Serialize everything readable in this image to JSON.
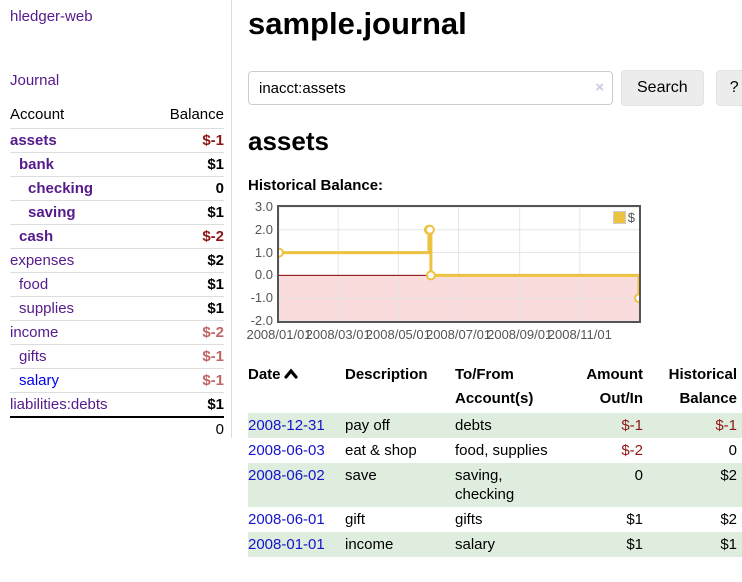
{
  "app": {
    "brand": "hledger-web",
    "nav_journal": "Journal"
  },
  "sidebar": {
    "header": {
      "account": "Account",
      "balance": "Balance"
    },
    "accounts": [
      {
        "name": "assets",
        "balance": "$-1"
      },
      {
        "name": "bank",
        "balance": "$1"
      },
      {
        "name": "checking",
        "balance": "0"
      },
      {
        "name": "saving",
        "balance": "$1"
      },
      {
        "name": "cash",
        "balance": "$-2"
      },
      {
        "name": "expenses",
        "balance": "$2"
      },
      {
        "name": "food",
        "balance": "$1"
      },
      {
        "name": "supplies",
        "balance": "$1"
      },
      {
        "name": "income",
        "balance": "$-2"
      },
      {
        "name": "gifts",
        "balance": "$-1"
      },
      {
        "name": "salary",
        "balance": "$-1"
      },
      {
        "name": "liabilities:debts",
        "balance": "$1"
      }
    ],
    "total": "0"
  },
  "main": {
    "title": "sample.journal",
    "search": {
      "value": "inacct:assets",
      "clear_icon": "×",
      "button": "Search",
      "help": "?"
    },
    "account_heading": "assets",
    "chart_label": "Historical Balance:"
  },
  "chart_data": {
    "type": "line",
    "step": true,
    "title": "Historical Balance of assets",
    "x_start": "2008/01/01",
    "x_end": "2008/12/31",
    "xticks": [
      "2008/01/01",
      "2008/03/01",
      "2008/05/01",
      "2008/07/01",
      "2008/09/01",
      "2008/11/01"
    ],
    "yticks": [
      3.0,
      2.0,
      1.0,
      0.0,
      -1.0,
      -2.0
    ],
    "ylim": [
      -2,
      3
    ],
    "series": [
      {
        "name": "$",
        "color": "#edc240",
        "points": [
          [
            "2008-01-01",
            1
          ],
          [
            "2008-06-01",
            2
          ],
          [
            "2008-06-02",
            2
          ],
          [
            "2008-06-03",
            0
          ],
          [
            "2008-12-31",
            -1
          ]
        ]
      }
    ],
    "legend": "$",
    "legend_position": "top-right",
    "grid": true,
    "negative_region_color": "#fbdcdc",
    "zero_line_color": "#8b0000"
  },
  "register": {
    "columns": [
      "Date",
      "Description",
      "To/From Account(s)",
      "Amount Out/In",
      "Historical Balance"
    ],
    "rows": [
      {
        "date": "2008-12-31",
        "description": "pay off",
        "accounts": "debts",
        "amount": "$-1",
        "balance": "$-1"
      },
      {
        "date": "2008-06-03",
        "description": "eat & shop",
        "accounts": "food, supplies",
        "amount": "$-2",
        "balance": "0"
      },
      {
        "date": "2008-06-02",
        "description": "save",
        "accounts": "saving, checking",
        "amount": "0",
        "balance": "$2"
      },
      {
        "date": "2008-06-01",
        "description": "gift",
        "accounts": "gifts",
        "amount": "$1",
        "balance": "$2"
      },
      {
        "date": "2008-01-01",
        "description": "income",
        "accounts": "salary",
        "amount": "$1",
        "balance": "$1"
      }
    ]
  }
}
